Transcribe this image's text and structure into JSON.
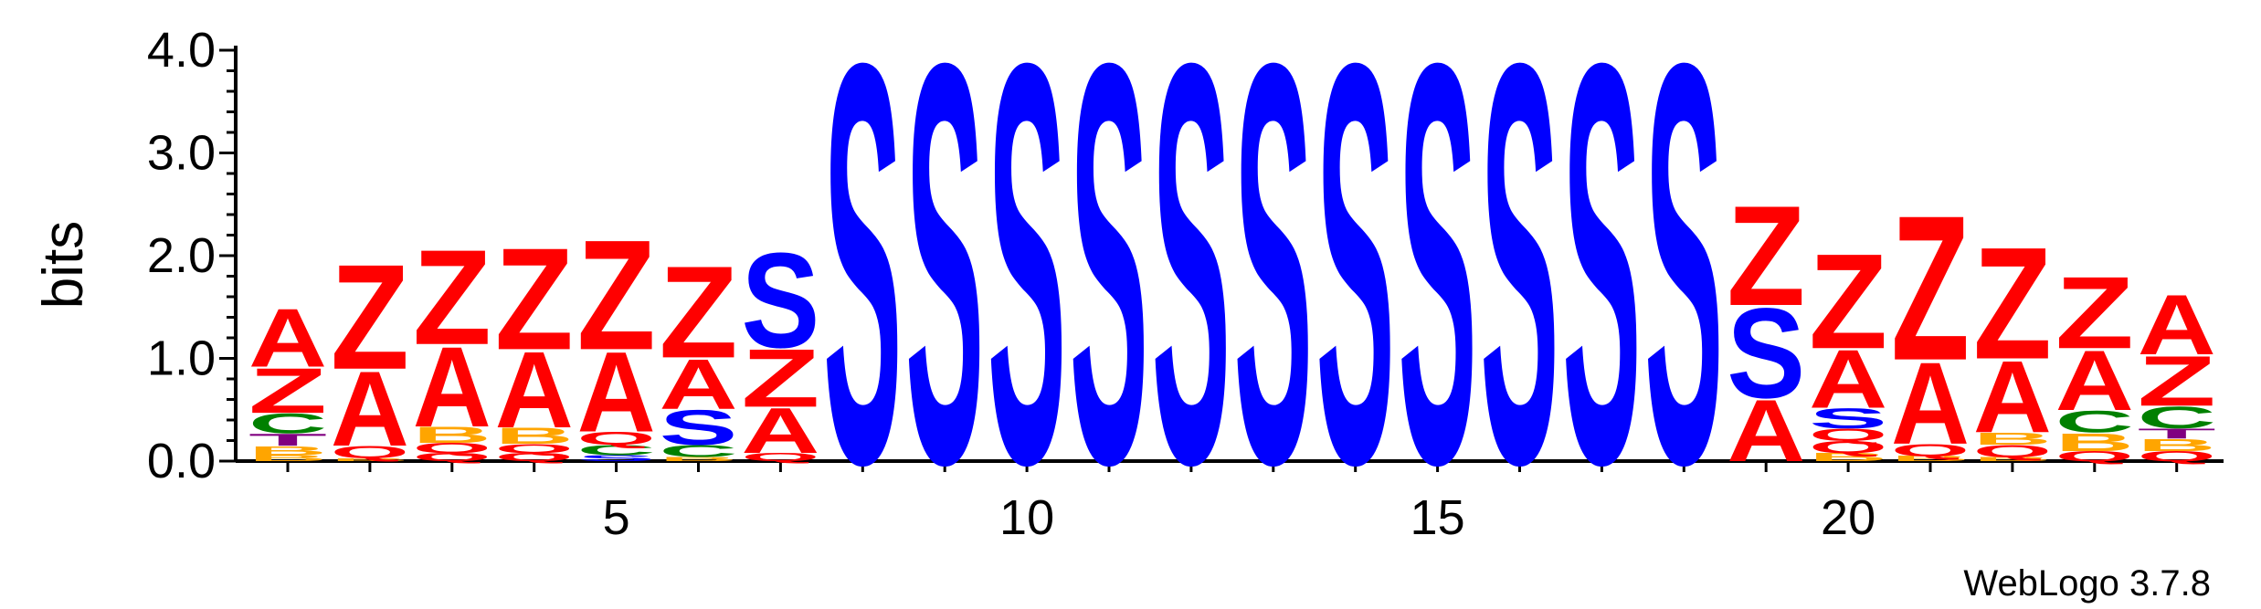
{
  "chart_data": {
    "type": "sequence-logo",
    "ylabel": "bits",
    "ylim": [
      0,
      4.0
    ],
    "y_ticks": [
      "0.0",
      "1.0",
      "2.0",
      "3.0",
      "4.0"
    ],
    "x_ticks": [
      5,
      10,
      15,
      20
    ],
    "x_range": [
      1,
      24
    ],
    "colors": {
      "Z": "#ff0000",
      "A": "#ff0000",
      "S": "#0000ff",
      "C": "#008000",
      "B": "#ffa500",
      "Q": "#ff0000",
      "T": "#800080"
    },
    "positions": [
      {
        "pos": 1,
        "stack": [
          {
            "l": "B",
            "h": 0.06
          },
          {
            "l": "B",
            "h": 0.09
          },
          {
            "l": "T",
            "h": 0.12
          },
          {
            "l": "C",
            "h": 0.2
          },
          {
            "l": "Z",
            "h": 0.45
          },
          {
            "l": "A",
            "h": 0.58
          }
        ]
      },
      {
        "pos": 2,
        "stack": [
          {
            "l": "B",
            "h": 0.03
          },
          {
            "l": "Q",
            "h": 0.12
          },
          {
            "l": "A",
            "h": 0.75
          },
          {
            "l": "Z",
            "h": 1.05
          }
        ]
      },
      {
        "pos": 3,
        "stack": [
          {
            "l": "Q",
            "h": 0.08
          },
          {
            "l": "Q",
            "h": 0.1
          },
          {
            "l": "B",
            "h": 0.16
          },
          {
            "l": "A",
            "h": 0.8
          },
          {
            "l": "Z",
            "h": 0.95
          }
        ]
      },
      {
        "pos": 4,
        "stack": [
          {
            "l": "Q",
            "h": 0.08
          },
          {
            "l": "Q",
            "h": 0.09
          },
          {
            "l": "B",
            "h": 0.16
          },
          {
            "l": "A",
            "h": 0.76
          },
          {
            "l": "Z",
            "h": 1.02
          }
        ]
      },
      {
        "pos": 5,
        "stack": [
          {
            "l": "S",
            "h": 0.06
          },
          {
            "l": "C",
            "h": 0.1
          },
          {
            "l": "Q",
            "h": 0.13
          },
          {
            "l": "A",
            "h": 0.8
          },
          {
            "l": "Z",
            "h": 1.1
          }
        ]
      },
      {
        "pos": 6,
        "stack": [
          {
            "l": "B",
            "h": 0.04
          },
          {
            "l": "C",
            "h": 0.12
          },
          {
            "l": "S",
            "h": 0.35
          },
          {
            "l": "A",
            "h": 0.5
          },
          {
            "l": "Z",
            "h": 0.92
          }
        ]
      },
      {
        "pos": 7,
        "stack": [
          {
            "l": "Q",
            "h": 0.08
          },
          {
            "l": "A",
            "h": 0.45
          },
          {
            "l": "Z",
            "h": 0.58
          },
          {
            "l": "S",
            "h": 0.95
          }
        ]
      },
      {
        "pos": 8,
        "stack": [
          {
            "l": "S",
            "h": 4.0
          }
        ]
      },
      {
        "pos": 9,
        "stack": [
          {
            "l": "S",
            "h": 4.0
          }
        ]
      },
      {
        "pos": 10,
        "stack": [
          {
            "l": "S",
            "h": 4.0
          }
        ]
      },
      {
        "pos": 11,
        "stack": [
          {
            "l": "S",
            "h": 4.0
          }
        ]
      },
      {
        "pos": 12,
        "stack": [
          {
            "l": "S",
            "h": 4.0
          }
        ]
      },
      {
        "pos": 13,
        "stack": [
          {
            "l": "S",
            "h": 4.0
          }
        ]
      },
      {
        "pos": 14,
        "stack": [
          {
            "l": "S",
            "h": 4.0
          }
        ]
      },
      {
        "pos": 15,
        "stack": [
          {
            "l": "S",
            "h": 4.0
          }
        ]
      },
      {
        "pos": 16,
        "stack": [
          {
            "l": "S",
            "h": 4.0
          }
        ]
      },
      {
        "pos": 17,
        "stack": [
          {
            "l": "S",
            "h": 4.0
          }
        ]
      },
      {
        "pos": 18,
        "stack": [
          {
            "l": "S",
            "h": 4.0
          }
        ]
      },
      {
        "pos": 19,
        "stack": [
          {
            "l": "A",
            "h": 0.62
          },
          {
            "l": "S",
            "h": 0.9
          },
          {
            "l": "Z",
            "h": 1.0
          }
        ]
      },
      {
        "pos": 20,
        "stack": [
          {
            "l": "B",
            "h": 0.08
          },
          {
            "l": "Q",
            "h": 0.12
          },
          {
            "l": "Q",
            "h": 0.12
          },
          {
            "l": "S",
            "h": 0.2
          },
          {
            "l": "A",
            "h": 0.58
          },
          {
            "l": "Z",
            "h": 0.95
          }
        ]
      },
      {
        "pos": 21,
        "stack": [
          {
            "l": "B",
            "h": 0.05
          },
          {
            "l": "Q",
            "h": 0.12
          },
          {
            "l": "A",
            "h": 0.82
          },
          {
            "l": "Z",
            "h": 1.45
          }
        ]
      },
      {
        "pos": 22,
        "stack": [
          {
            "l": "B",
            "h": 0.04
          },
          {
            "l": "Q",
            "h": 0.12
          },
          {
            "l": "B",
            "h": 0.12
          },
          {
            "l": "A",
            "h": 0.72
          },
          {
            "l": "Z",
            "h": 1.12
          }
        ]
      },
      {
        "pos": 23,
        "stack": [
          {
            "l": "Q",
            "h": 0.1
          },
          {
            "l": "B",
            "h": 0.18
          },
          {
            "l": "C",
            "h": 0.22
          },
          {
            "l": "A",
            "h": 0.6
          },
          {
            "l": "Z",
            "h": 0.72
          }
        ]
      },
      {
        "pos": 24,
        "stack": [
          {
            "l": "Q",
            "h": 0.1
          },
          {
            "l": "B",
            "h": 0.12
          },
          {
            "l": "T",
            "h": 0.1
          },
          {
            "l": "C",
            "h": 0.22
          },
          {
            "l": "Z",
            "h": 0.5
          },
          {
            "l": "A",
            "h": 0.6
          }
        ]
      }
    ]
  },
  "footer": {
    "credit": "WebLogo 3.7.8"
  }
}
